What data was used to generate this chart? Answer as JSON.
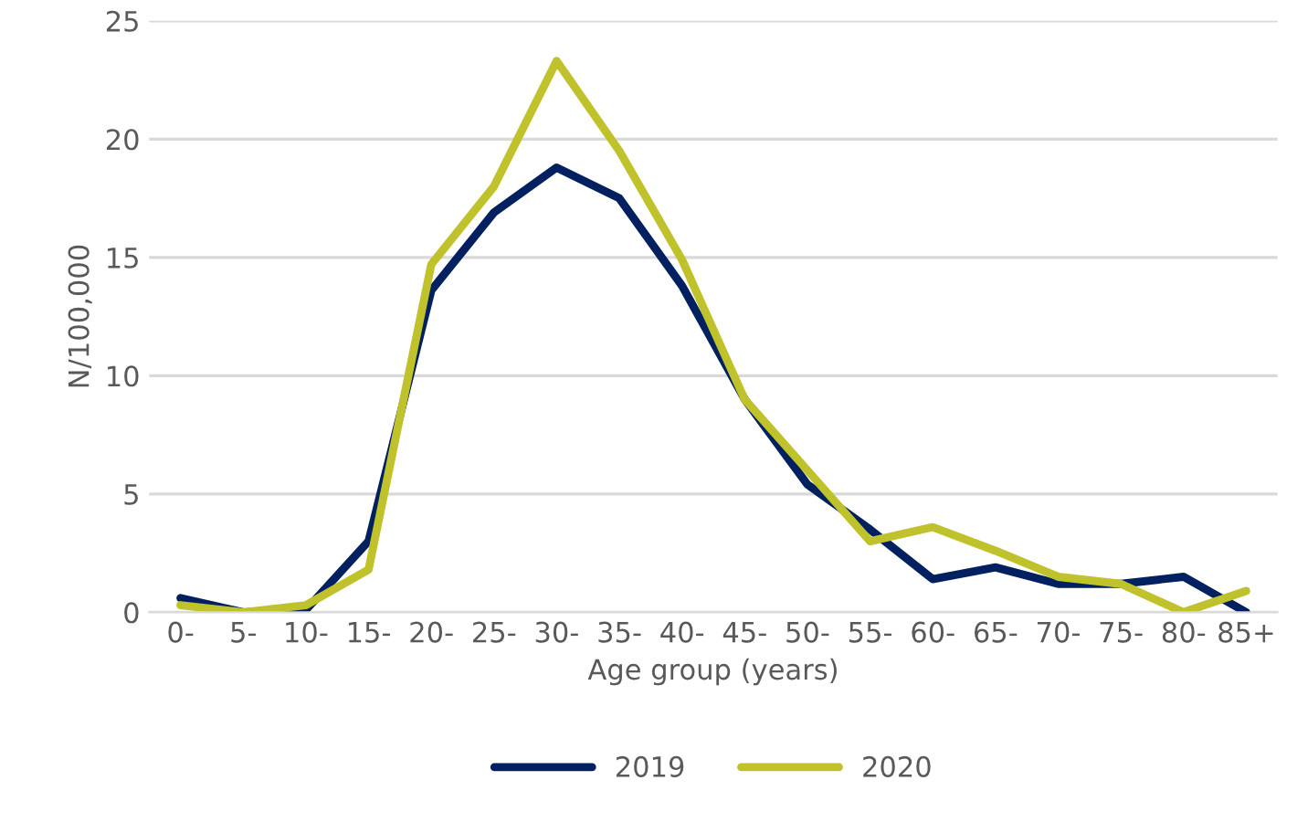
{
  "chart_data": {
    "type": "line",
    "xlabel": "Age group (years)",
    "ylabel": "N/100,000",
    "categories": [
      "0-",
      "5-",
      "10-",
      "15-",
      "20-",
      "25-",
      "30-",
      "35-",
      "40-",
      "45-",
      "50-",
      "55-",
      "60-",
      "65-",
      "70-",
      "75-",
      "80-",
      "85+"
    ],
    "series": [
      {
        "name": "2019",
        "color": "#002060",
        "values": [
          0.6,
          0,
          0.1,
          3.0,
          13.6,
          16.9,
          18.8,
          17.5,
          13.8,
          9.0,
          5.4,
          3.5,
          1.4,
          1.9,
          1.2,
          1.2,
          1.5,
          0
        ]
      },
      {
        "name": "2020",
        "color": "#bfc22a",
        "values": [
          0.3,
          0,
          0.3,
          1.8,
          14.7,
          18.0,
          23.3,
          19.5,
          14.9,
          9.0,
          6.0,
          3.0,
          3.6,
          2.6,
          1.5,
          1.2,
          0,
          0.9
        ]
      }
    ],
    "ylim": [
      0,
      25
    ],
    "yticks": [
      0,
      5,
      10,
      15,
      20,
      25
    ],
    "grid": "y",
    "legend": "bottom",
    "marker": "none",
    "line_style": "solid"
  }
}
